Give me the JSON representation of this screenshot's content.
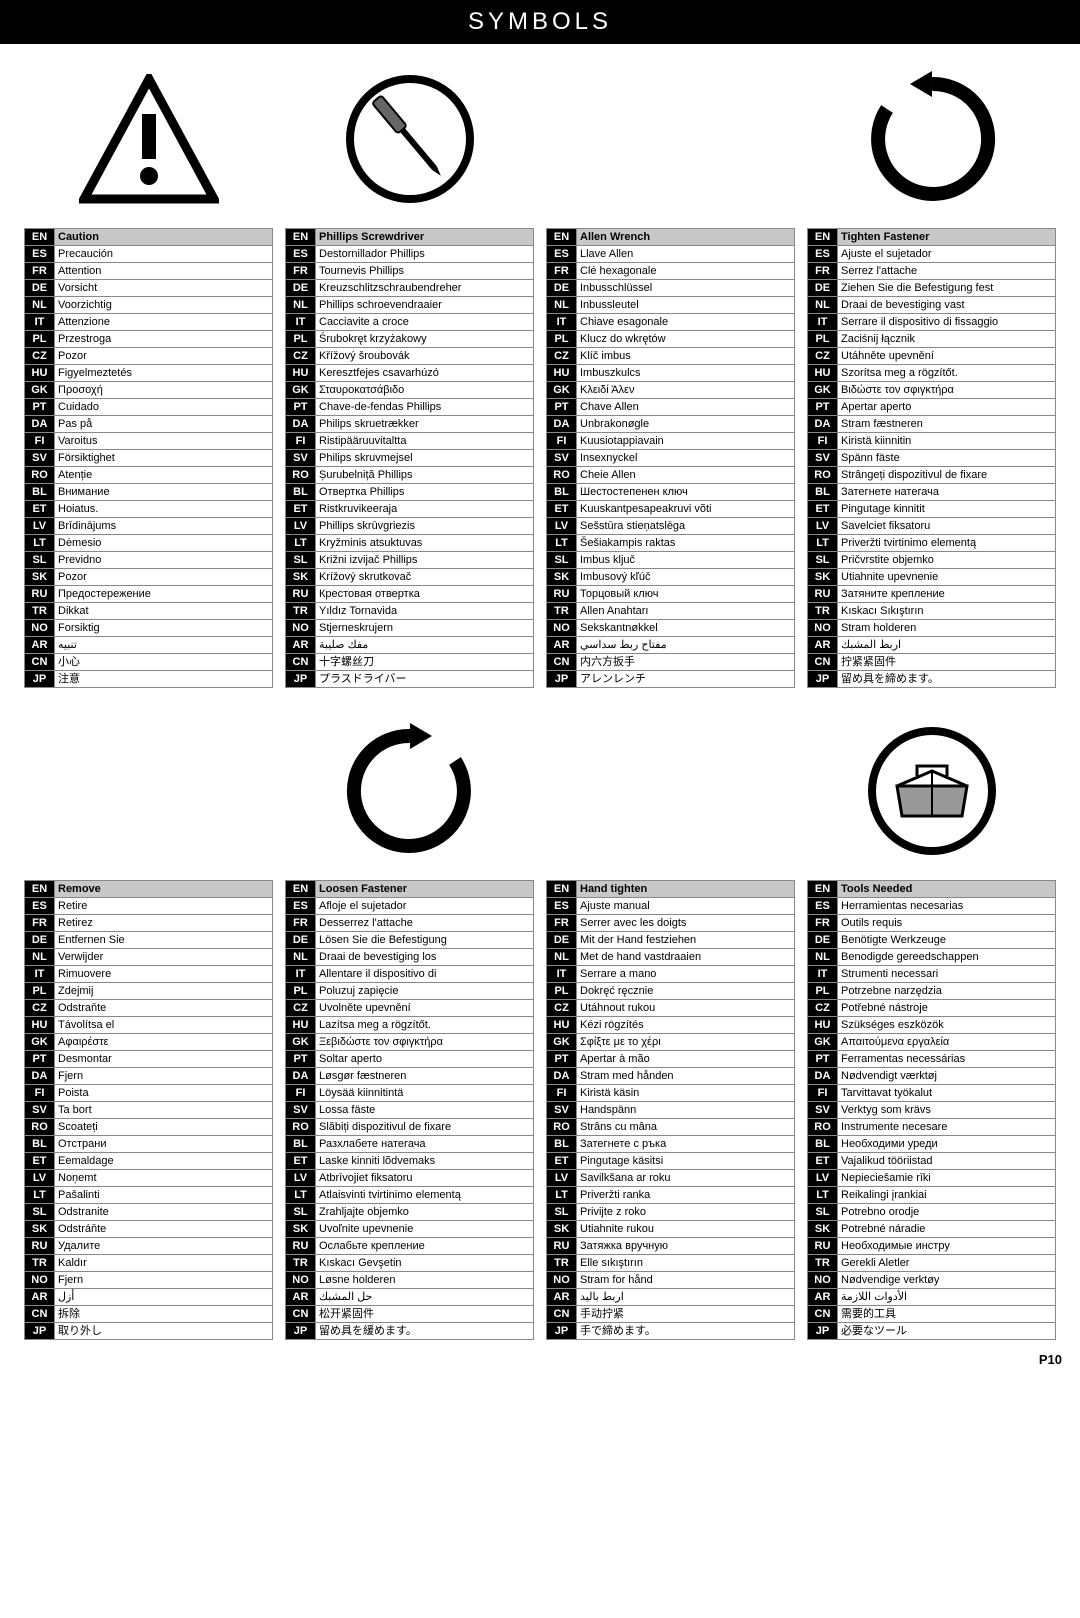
{
  "banner": "SYMBOLS",
  "page_num": "P10",
  "langs": [
    "EN",
    "ES",
    "FR",
    "DE",
    "NL",
    "IT",
    "PL",
    "CZ",
    "HU",
    "GK",
    "PT",
    "DA",
    "FI",
    "SV",
    "RO",
    "BL",
    "ET",
    "LV",
    "LT",
    "SL",
    "SK",
    "RU",
    "TR",
    "NO",
    "AR",
    "CN",
    "JP"
  ],
  "tables": [
    [
      "Caution",
      "Precaución",
      "Attention",
      "Vorsicht",
      "Voorzichtig",
      "Attenzione",
      "Przestroga",
      "Pozor",
      "Figyelmeztetés",
      "Προσοχή",
      "Cuidado",
      "Pas på",
      "Varoitus",
      "Försiktighet",
      "Atenție",
      "Внимание",
      "Hoiatus.",
      "Brīdinājums",
      "Dėmesio",
      "Previdno",
      "Pozor",
      "Предостережение",
      "Dikkat",
      "Forsiktig",
      "تنبيه",
      "小心",
      "注意"
    ],
    [
      "Phillips Screwdriver",
      "Destornillador Phillips",
      "Tournevis Phillips",
      "Kreuzschlitzschraubendreher",
      "Phillips schroevendraaier",
      "Cacciavite a croce",
      "Śrubokręt krzyżakowy",
      "Křížový šroubovák",
      "Keresztfejes csavarhúzó",
      "Σταυροκατσάβιδο",
      "Chave-de-fendas Phillips",
      "Philips skruetrækker",
      "Ristipääruuvitaltta",
      "Philips skruvmejsel",
      "Șurubelniță Phillips",
      "Отвертка Phillips",
      "Ristkruvikeeraja",
      "Phillips skrūvgriezis",
      "Kryžminis atsuktuvas",
      "Križni izvijač Phillips",
      "Krížový skrutkovač",
      "Крестовая отвертка",
      "Yıldız Tornavida",
      "Stjerneskrujern",
      "مفك صليبة",
      "十字螺丝刀",
      "プラスドライバー"
    ],
    [
      "Allen Wrench",
      "Llave Allen",
      "Clé hexagonale",
      "Inbusschlüssel",
      "Inbussleutel",
      "Chiave esagonale",
      "Klucz do wkrętów",
      "Klíč imbus",
      "Imbuszkulcs",
      "Κλειδί Άλεν",
      "Chave Allen",
      "Unbrakonøgle",
      "Kuusiotappiavain",
      "Insexnyckel",
      "Cheie Allen",
      "Шестостепенен ключ",
      "Kuuskantpesapeakruvi võti",
      "Sešstūra stieņatslēga",
      "Šešiakampis raktas",
      "Imbus ključ",
      "Imbusový kľúč",
      "Торцовый ключ",
      "Allen Anahtarı",
      "Sekskantnøkkel",
      "مفتاح ربط سداسي",
      "内六方扳手",
      "アレンレンチ"
    ],
    [
      "Tighten Fastener",
      "Ajuste el sujetador",
      "Serrez l'attache",
      "Ziehen Sie die Befestigung fest",
      "Draai de bevestiging vast",
      "Serrare il dispositivo di fissaggio",
      "Zaciśnij łącznik",
      "Utáhněte upevnění",
      "Szorítsa meg a rögzítőt.",
      "Βιδώστε τον σφιγκτήρα",
      "Apertar aperto",
      "Stram fæstneren",
      "Kiristä kiinnitin",
      "Spänn fäste",
      "Strângeți dispozitivul de fixare",
      "Затегнете натегача",
      "Pingutage kinnitit",
      "Savelciet fiksatoru",
      "Priveržti tvirtinimo elementą",
      "Pričvrstite objemko",
      "Utiahnite upevnenie",
      "Затяните крепление",
      "Kıskacı Sıkıştırın",
      "Stram holderen",
      "اربط المشبك",
      "拧紧紧固件",
      "留め具を締めます。"
    ],
    [
      "Remove",
      "Retire",
      "Retirez",
      "Entfernen Sie",
      "Verwijder",
      "Rimuovere",
      "Zdejmij",
      "Odstraňte",
      "Távolítsa el",
      "Αφαιρέστε",
      "Desmontar",
      "Fjern",
      "Poista",
      "Ta bort",
      "Scoateți",
      "Отстрани",
      "Eemaldage",
      "Noņemt",
      "Pašalinti",
      "Odstranite",
      "Odstráňte",
      "Удалите",
      "Kaldır",
      "Fjern",
      "أزل",
      "拆除",
      "取り外し"
    ],
    [
      "Loosen Fastener",
      "Afloje el sujetador",
      "Desserrez l'attache",
      "Lösen Sie die Befestigung",
      "Draai de bevestiging los",
      "Allentare il dispositivo di",
      "Poluzuj zapięcie",
      "Uvolněte upevnění",
      "Lazítsa meg a rögzítőt.",
      "Ξεβιδώστε τον σφιγκτήρα",
      "Soltar aperto",
      "Løsgør fæstneren",
      "Löysää kiinnitintä",
      "Lossa fäste",
      "Slăbiți dispozitivul de fixare",
      "Разхлабете натегача",
      "Laske kinniti lõdvemaks",
      "Atbrīvojiet fiksatoru",
      "Atlaisvinti tvirtinimo elementą",
      "Zrahljajte objemko",
      "Uvoľnite upevnenie",
      "Ослабьте крепление",
      "Kıskacı Gevşetin",
      "Løsne holderen",
      "حل المشبك",
      "松开紧固件",
      "留め具を緩めます。"
    ],
    [
      "Hand tighten",
      "Ajuste manual",
      "Serrer avec les doigts",
      "Mit der Hand festziehen",
      "Met de hand vastdraaien",
      "Serrare a mano",
      "Dokręć ręcznie",
      "Utáhnout rukou",
      "Kézi rögzítés",
      "Σφίξτε με το χέρι",
      "Apertar à mão",
      "Stram med hånden",
      "Kiristä käsin",
      "Handspänn",
      "Strâns cu mâna",
      "Затегнете с ръка",
      "Pingutage käsitsi",
      "Savilkšana ar roku",
      "Priveržti ranka",
      "Privijte z roko",
      "Utiahnite rukou",
      "Затяжка вручную",
      "Elle sıkıştırın",
      "Stram for hånd",
      "اربط باليد",
      "手动拧紧",
      "手で締めます。"
    ],
    [
      "Tools Needed",
      "Herramientas necesarias",
      "Outils requis",
      "Benötigte Werkzeuge",
      "Benodigde gereedschappen",
      "Strumenti necessari",
      "Potrzebne narzędzia",
      "Potřebné nástroje",
      "Szükséges eszközök",
      "Απαιτούμενα εργαλεία",
      "Ferramentas necessárias",
      "Nødvendigt værktøj",
      "Tarvittavat työkalut",
      "Verktyg som krävs",
      "Instrumente necesare",
      "Необходими уреди",
      "Vajalikud tööriistad",
      "Nepieciešamie rīki",
      "Reikalingi įrankiai",
      "Potrebno orodje",
      "Potrebné náradie",
      "Необходимые инстру",
      "Gerekli Aletler",
      "Nødvendige verktøy",
      "الأدوات اللازمة",
      "需要的工具",
      "必要なツール"
    ]
  ],
  "icons": [
    "caution",
    "screwdriver",
    "",
    "tighten",
    "",
    "loosen",
    "",
    "toolbox"
  ]
}
